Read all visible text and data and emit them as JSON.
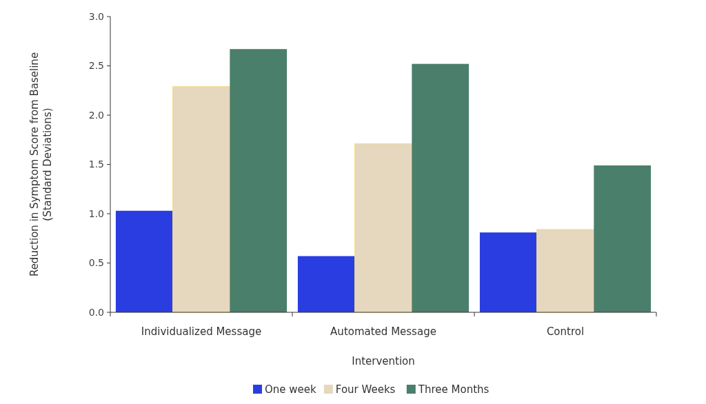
{
  "chart_data": {
    "type": "bar",
    "xlabel": "Intervention",
    "ylabel": "Reduction in Symptom Score from Baseline\n(Standard Deviations)",
    "categories": [
      "Individualized Message",
      "Automated Message",
      "Control"
    ],
    "series": [
      {
        "name": "One week",
        "color": "#2a3de0",
        "values": [
          1.03,
          0.57,
          0.81
        ]
      },
      {
        "name": "Four Weeks",
        "color": "#e6d7bf",
        "values": [
          2.29,
          1.71,
          0.84
        ]
      },
      {
        "name": "Three Months",
        "color": "#4a7f6b",
        "values": [
          2.67,
          2.52,
          1.49
        ]
      }
    ],
    "ylim": [
      0,
      3
    ],
    "yticks": [
      {
        "value": 0,
        "label": "0.0"
      },
      {
        "value": 0.5,
        "label": "0.5"
      },
      {
        "value": 1,
        "label": "1.0"
      },
      {
        "value": 1.5,
        "label": "1.5"
      },
      {
        "value": 2,
        "label": "2.0"
      },
      {
        "value": 2.5,
        "label": "2.5"
      },
      {
        "value": 3,
        "label": "3.0"
      }
    ],
    "grid": false,
    "legend": "bottom"
  }
}
